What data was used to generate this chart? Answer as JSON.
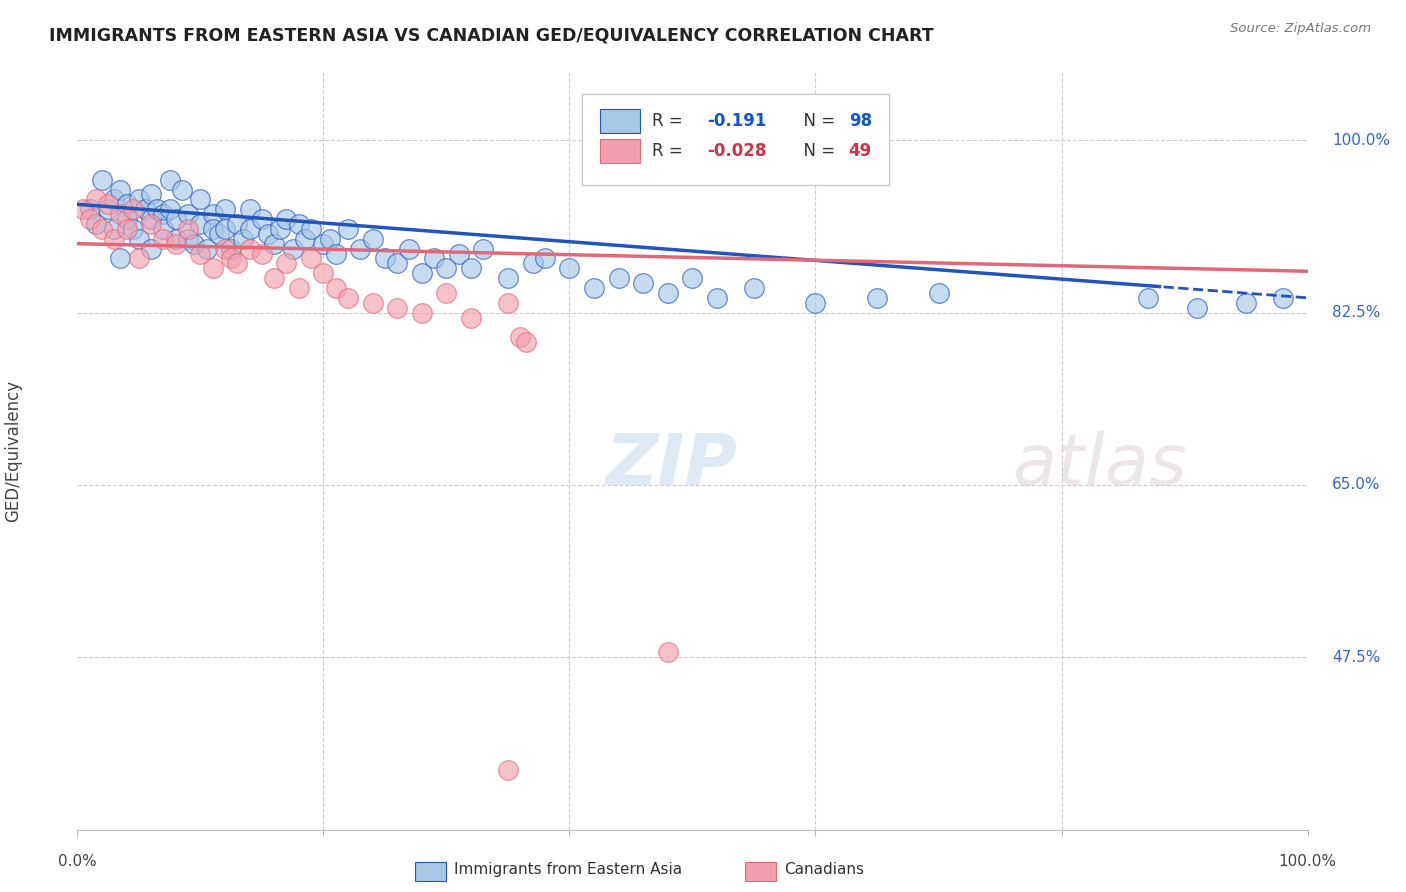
{
  "title": "IMMIGRANTS FROM EASTERN ASIA VS CANADIAN GED/EQUIVALENCY CORRELATION CHART",
  "source": "Source: ZipAtlas.com",
  "ylabel": "GED/Equivalency",
  "yticks": [
    47.5,
    65.0,
    82.5,
    100.0
  ],
  "xlim": [
    0.0,
    100.0
  ],
  "ylim": [
    30.0,
    107.0
  ],
  "R_blue": -0.191,
  "N_blue": 98,
  "R_pink": -0.028,
  "N_pink": 49,
  "blue_color": "#A8C8E8",
  "pink_color": "#F2A0B0",
  "trendline_blue": "#2255BB",
  "trendline_pink": "#E06878",
  "watermark_zip": "ZIP",
  "watermark_atlas": "atlas",
  "blue_x": [
    1.0,
    1.5,
    2.0,
    2.5,
    3.0,
    3.0,
    3.5,
    3.5,
    4.0,
    4.0,
    4.5,
    5.0,
    5.0,
    5.5,
    6.0,
    6.0,
    6.0,
    6.5,
    7.0,
    7.0,
    7.5,
    7.5,
    8.0,
    8.0,
    8.5,
    9.0,
    9.0,
    9.5,
    10.0,
    10.0,
    10.5,
    11.0,
    11.0,
    11.5,
    12.0,
    12.0,
    12.5,
    13.0,
    13.5,
    14.0,
    14.0,
    15.0,
    15.5,
    16.0,
    16.5,
    17.0,
    17.5,
    18.0,
    18.5,
    19.0,
    20.0,
    20.5,
    21.0,
    22.0,
    23.0,
    24.0,
    25.0,
    26.0,
    27.0,
    28.0,
    29.0,
    30.0,
    31.0,
    32.0,
    33.0,
    35.0,
    37.0,
    38.0,
    40.0,
    42.0,
    44.0,
    46.0,
    48.0,
    50.0,
    52.0,
    55.0,
    60.0,
    65.0,
    70.0,
    87.0,
    91.0,
    95.0,
    98.0
  ],
  "blue_y": [
    93.0,
    91.5,
    96.0,
    93.0,
    94.0,
    91.0,
    95.0,
    88.0,
    93.5,
    92.0,
    91.0,
    94.0,
    90.0,
    93.0,
    94.5,
    92.0,
    89.0,
    93.0,
    92.5,
    91.0,
    96.0,
    93.0,
    92.0,
    90.0,
    95.0,
    92.5,
    90.0,
    89.5,
    94.0,
    91.5,
    89.0,
    92.5,
    91.0,
    90.5,
    93.0,
    91.0,
    89.0,
    91.5,
    90.0,
    93.0,
    91.0,
    92.0,
    90.5,
    89.5,
    91.0,
    92.0,
    89.0,
    91.5,
    90.0,
    91.0,
    89.5,
    90.0,
    88.5,
    91.0,
    89.0,
    90.0,
    88.0,
    87.5,
    89.0,
    86.5,
    88.0,
    87.0,
    88.5,
    87.0,
    89.0,
    86.0,
    87.5,
    88.0,
    87.0,
    85.0,
    86.0,
    85.5,
    84.5,
    86.0,
    84.0,
    85.0,
    83.5,
    84.0,
    84.5,
    84.0,
    83.0,
    83.5,
    84.0
  ],
  "pink_x": [
    0.5,
    1.0,
    1.5,
    2.0,
    2.5,
    3.0,
    3.5,
    4.0,
    4.5,
    5.0,
    6.0,
    7.0,
    8.0,
    9.0,
    10.0,
    11.0,
    12.0,
    12.5,
    13.0,
    14.0,
    15.0,
    16.0,
    17.0,
    18.0,
    19.0,
    20.0,
    21.0,
    22.0,
    24.0,
    26.0,
    28.0,
    30.0,
    32.0,
    35.0,
    36.0,
    36.5,
    48.0
  ],
  "pink_y": [
    93.0,
    92.0,
    94.0,
    91.0,
    93.5,
    90.0,
    92.5,
    91.0,
    93.0,
    88.0,
    91.5,
    90.0,
    89.5,
    91.0,
    88.5,
    87.0,
    89.0,
    88.0,
    87.5,
    89.0,
    88.5,
    86.0,
    87.5,
    85.0,
    88.0,
    86.5,
    85.0,
    84.0,
    83.5,
    83.0,
    82.5,
    84.5,
    82.0,
    83.5,
    80.0,
    79.5,
    48.0
  ],
  "pink_outlier_x": [
    35.0
  ],
  "pink_outlier_y": [
    36.0
  ],
  "blue_dashed_from": 88.0
}
